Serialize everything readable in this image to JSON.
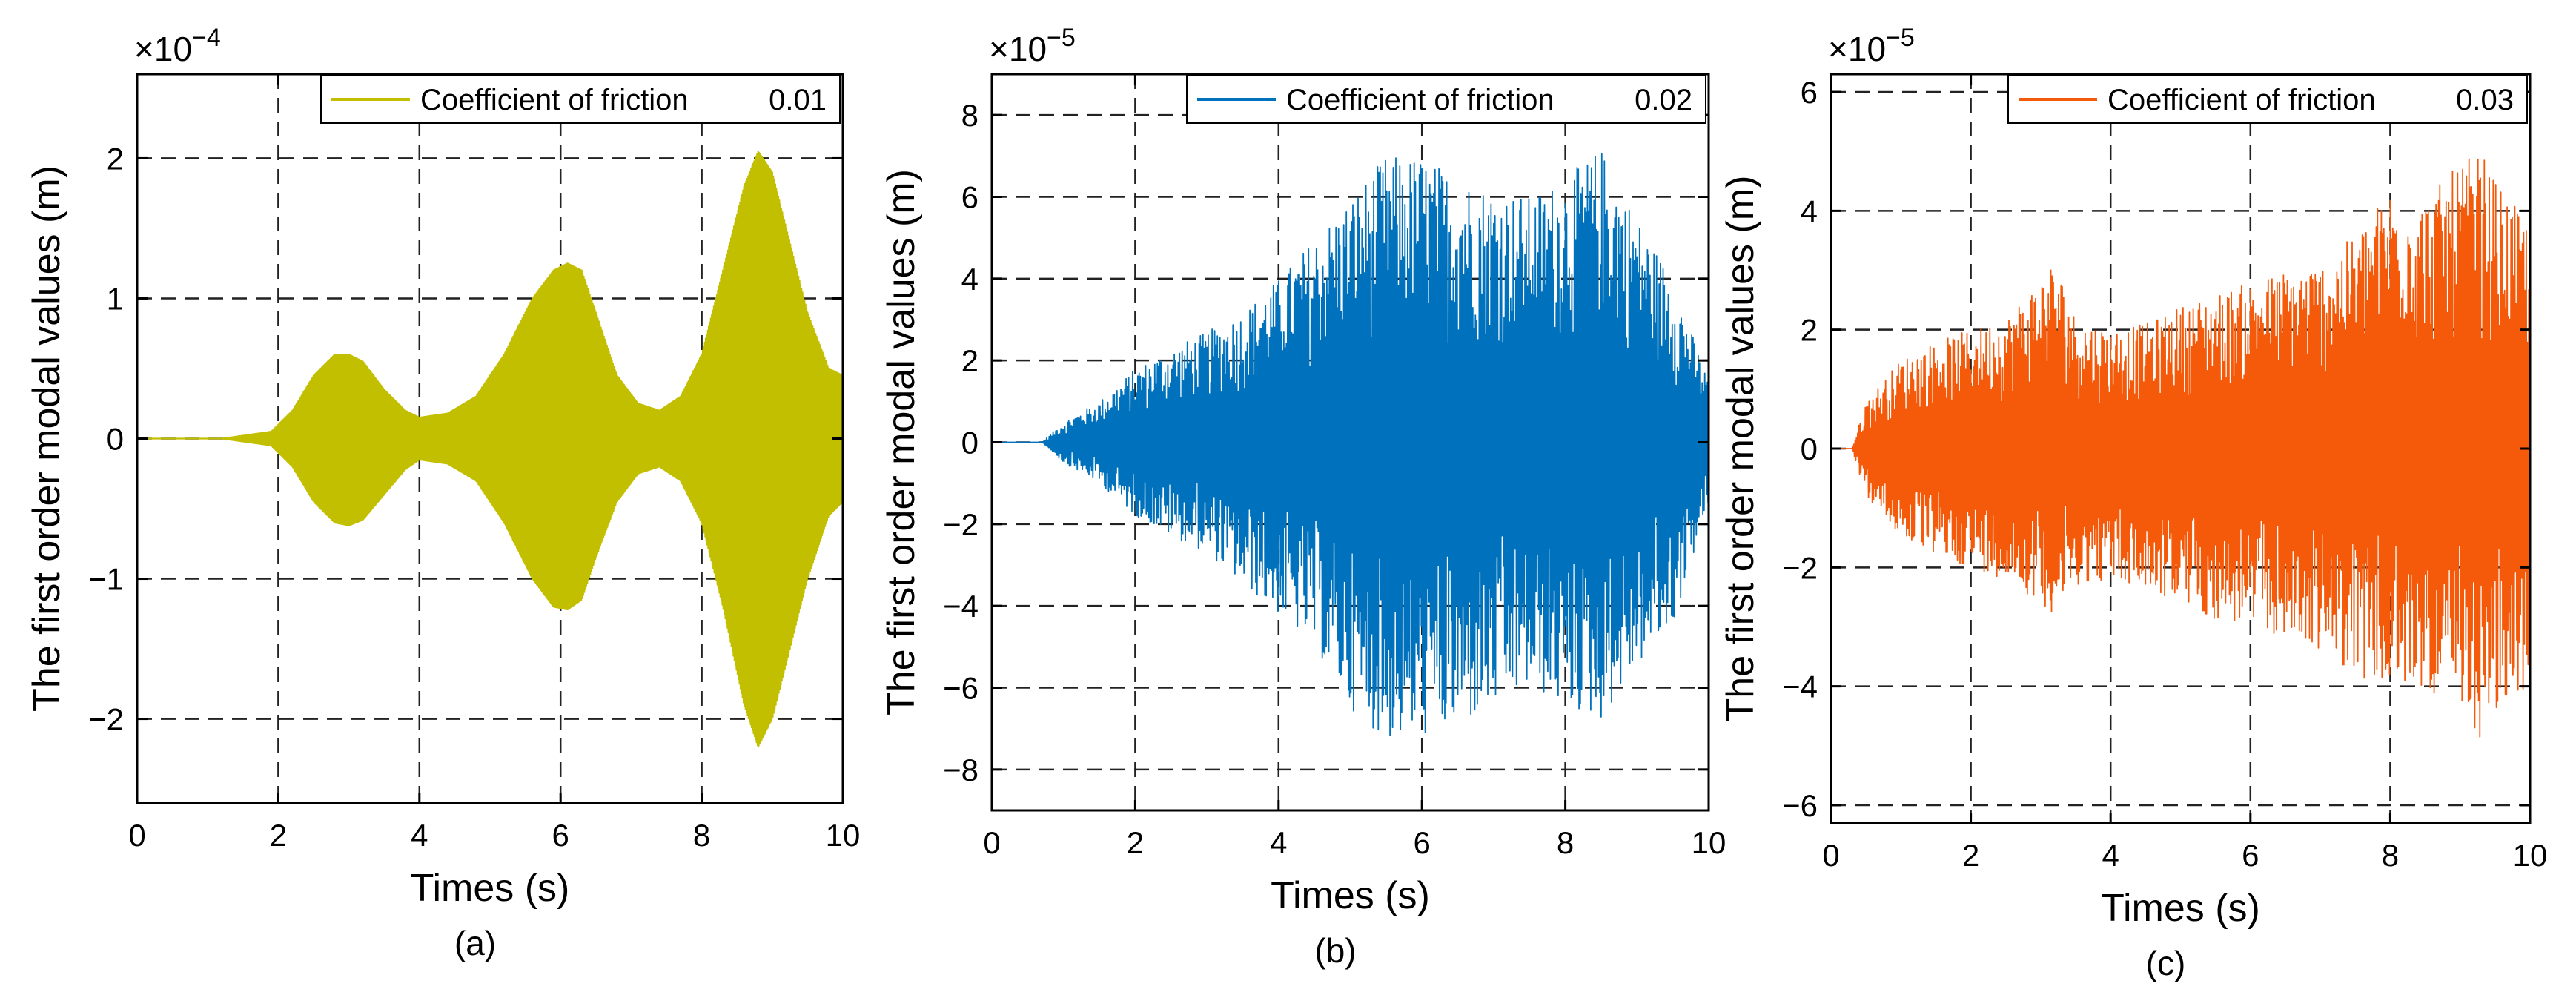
{
  "figure": {
    "panels": [
      "(a)",
      "(b)",
      "(c)"
    ]
  },
  "chart_data": [
    {
      "type": "line",
      "caption": "(a)",
      "title": "",
      "xlabel": "Times (s)",
      "ylabel": "The first order modal values (m)",
      "exponent_label": "×10",
      "exponent_power": "−4",
      "xlim": [
        0,
        10
      ],
      "ylim": [
        -2.6,
        2.6
      ],
      "xticks": [
        0,
        2,
        4,
        6,
        8,
        10
      ],
      "yticks": [
        -2,
        -1,
        0,
        1,
        2
      ],
      "ytick_labels": [
        "−2",
        "−1",
        "0",
        "1",
        "2"
      ],
      "grid": true,
      "legend": {
        "position": "top-right",
        "label": "Coefficient of friction",
        "value": "0.01"
      },
      "series": [
        {
          "name": "Coefficient of friction 0.01",
          "color": "#c2bf00",
          "style": "dense-oscillation",
          "envelope_x": [
            0,
            1.2,
            1.9,
            2.2,
            2.5,
            2.8,
            3.0,
            3.2,
            3.5,
            3.8,
            4.0,
            4.4,
            4.8,
            5.2,
            5.6,
            5.9,
            6.1,
            6.3,
            6.5,
            6.8,
            7.1,
            7.4,
            7.7,
            8.0,
            8.3,
            8.6,
            8.8,
            9.0,
            9.2,
            9.5,
            9.8,
            10
          ],
          "envelope_upper": [
            0,
            0,
            0.05,
            0.2,
            0.45,
            0.6,
            0.6,
            0.55,
            0.35,
            0.2,
            0.15,
            0.18,
            0.3,
            0.6,
            1.0,
            1.2,
            1.25,
            1.2,
            0.9,
            0.45,
            0.25,
            0.2,
            0.3,
            0.6,
            1.2,
            1.8,
            2.05,
            1.9,
            1.5,
            0.9,
            0.5,
            0.45
          ],
          "envelope_lower": [
            0,
            0,
            -0.05,
            -0.2,
            -0.45,
            -0.6,
            -0.62,
            -0.58,
            -0.4,
            -0.22,
            -0.15,
            -0.18,
            -0.3,
            -0.6,
            -1.0,
            -1.2,
            -1.22,
            -1.15,
            -0.85,
            -0.45,
            -0.25,
            -0.2,
            -0.3,
            -0.6,
            -1.2,
            -1.9,
            -2.2,
            -2.0,
            -1.6,
            -1.0,
            -0.55,
            -0.45
          ]
        }
      ]
    },
    {
      "type": "line",
      "caption": "(b)",
      "title": "",
      "xlabel": "Times (s)",
      "ylabel": "The first order modal values (m)",
      "exponent_label": "×10",
      "exponent_power": "−5",
      "xlim": [
        0,
        10
      ],
      "ylim": [
        -9,
        9
      ],
      "xticks": [
        0,
        2,
        4,
        6,
        8,
        10
      ],
      "yticks": [
        -8,
        -6,
        -4,
        -2,
        0,
        2,
        4,
        6,
        8
      ],
      "ytick_labels": [
        "−8",
        "−6",
        "−4",
        "−2",
        "0",
        "2",
        "4",
        "6",
        "8"
      ],
      "grid": true,
      "legend": {
        "position": "top-right",
        "label": "Coefficient of friction",
        "value": "0.02"
      },
      "series": [
        {
          "name": "Coefficient of friction 0.02",
          "color": "#0072bd",
          "style": "noisy-oscillation",
          "envelope_x": [
            0,
            0.7,
            1.0,
            1.5,
            2.0,
            2.5,
            3.0,
            3.5,
            4.0,
            4.5,
            5.0,
            5.5,
            6.0,
            6.5,
            7.0,
            7.5,
            8.0,
            8.5,
            9.0,
            9.5,
            10
          ],
          "envelope_upper": [
            0,
            0,
            0.5,
            1.0,
            1.8,
            2.3,
            2.7,
            3.2,
            4.0,
            5.0,
            6.0,
            7.0,
            7.0,
            6.5,
            6.2,
            6.0,
            6.5,
            7.2,
            5.5,
            4.0,
            1.5
          ],
          "envelope_lower": [
            0,
            0,
            -0.5,
            -1.0,
            -1.8,
            -2.3,
            -2.7,
            -3.5,
            -4.2,
            -5.0,
            -6.5,
            -7.3,
            -7.2,
            -7.0,
            -6.5,
            -6.0,
            -6.5,
            -6.8,
            -5.5,
            -4.5,
            -1.5
          ]
        }
      ]
    },
    {
      "type": "line",
      "caption": "(c)",
      "title": "",
      "xlabel": "Times (s)",
      "ylabel": "The first order modal values (m)",
      "exponent_label": "×10",
      "exponent_power": "−5",
      "xlim": [
        0,
        10
      ],
      "ylim": [
        -6.3,
        6.3
      ],
      "xticks": [
        0,
        2,
        4,
        6,
        8,
        10
      ],
      "yticks": [
        -6,
        -4,
        -2,
        0,
        2,
        4,
        6
      ],
      "ytick_labels": [
        "−6",
        "−4",
        "−2",
        "0",
        "2",
        "4",
        "6"
      ],
      "grid": true,
      "legend": {
        "position": "top-right",
        "label": "Coefficient of friction",
        "value": "0.03"
      },
      "series": [
        {
          "name": "Coefficient of friction 0.03",
          "color": "#f55a0a",
          "style": "noisy-oscillation",
          "envelope_x": [
            0,
            0.3,
            0.5,
            1.0,
            1.5,
            2.0,
            2.5,
            3.0,
            3.2,
            3.5,
            4.0,
            4.5,
            5.0,
            5.5,
            6.0,
            6.5,
            7.0,
            7.5,
            8.0,
            8.5,
            9.0,
            9.3,
            9.6,
            10
          ],
          "envelope_upper": [
            0,
            0,
            0.8,
            1.5,
            1.8,
            2.0,
            2.2,
            2.9,
            3.2,
            2.2,
            2.0,
            2.1,
            2.4,
            2.6,
            2.8,
            3.0,
            3.1,
            3.6,
            4.4,
            4.2,
            4.8,
            5.0,
            4.3,
            3.8
          ],
          "envelope_lower": [
            0,
            0,
            -0.8,
            -1.5,
            -1.8,
            -2.0,
            -2.2,
            -2.6,
            -2.8,
            -2.3,
            -2.2,
            -2.4,
            -2.6,
            -2.9,
            -3.0,
            -3.2,
            -3.4,
            -3.8,
            -4.1,
            -4.0,
            -4.6,
            -4.9,
            -4.5,
            -4.0
          ]
        }
      ]
    }
  ]
}
